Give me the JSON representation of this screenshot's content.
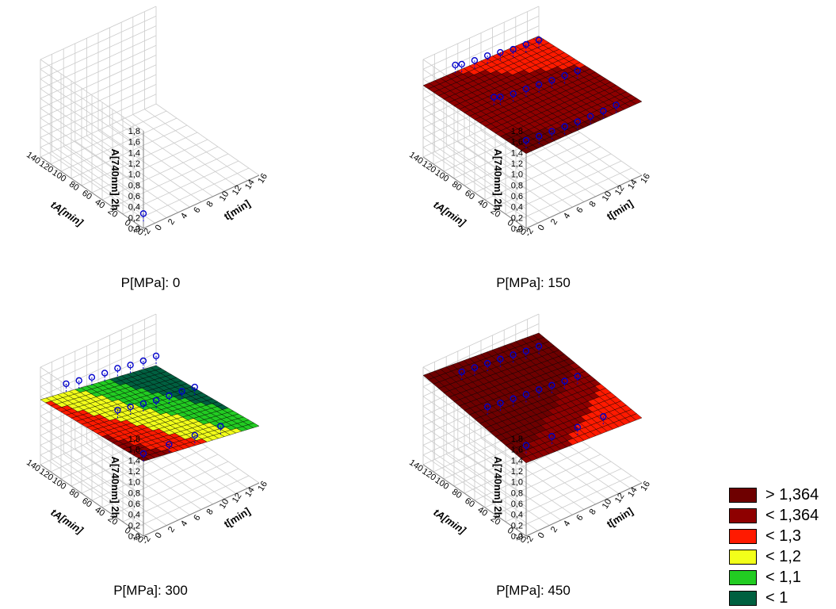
{
  "chart_data": [
    {
      "type": "surface3d",
      "caption": "P[MPa]: 0",
      "zlabel": "A[740nm] 2h",
      "xlabel": "t[min]",
      "ylabel": "tA[min]",
      "x_ticks": [
        "-2",
        "0",
        "2",
        "4",
        "6",
        "8",
        "10",
        "12",
        "14",
        "16"
      ],
      "y_ticks": [
        "-20",
        "0",
        "20",
        "40",
        "60",
        "80",
        "100",
        "120",
        "140"
      ],
      "z_ticks": [
        "0,0",
        "0,2",
        "0,4",
        "0,6",
        "0,8",
        "1,0",
        "1,2",
        "1,4",
        "1,6",
        "1,8"
      ],
      "xlim": [
        -2,
        16
      ],
      "ylim": [
        -20,
        140
      ],
      "zlim": [
        0,
        1.8
      ],
      "surface": null,
      "points": [
        {
          "x": 0,
          "y": 0,
          "z": 0
        }
      ]
    },
    {
      "type": "surface3d",
      "caption": "P[MPa]: 150",
      "zlabel": "A[740nm] 2h",
      "xlabel": "t[min]",
      "ylabel": "tA[min]",
      "x_ticks": [
        "-2",
        "0",
        "2",
        "4",
        "6",
        "8",
        "10",
        "12",
        "14",
        "16"
      ],
      "y_ticks": [
        "-20",
        "0",
        "20",
        "40",
        "60",
        "80",
        "100",
        "120",
        "140"
      ],
      "z_ticks": [
        "0,0",
        "0,2",
        "0,4",
        "0,6",
        "0,8",
        "1,0",
        "1,2",
        "1,4",
        "1,6",
        "1,8"
      ],
      "xlim": [
        -2,
        16
      ],
      "ylim": [
        -20,
        140
      ],
      "zlim": [
        0,
        1.8
      ],
      "surface": {
        "z_corner_x0y0": 1.38,
        "z_corner_x1y0": 1.36,
        "z_corner_x0y1": 1.32,
        "z_corner_x1y1": 1.25
      },
      "points": [
        {
          "x": 1,
          "y": 120,
          "z": 1.7
        },
        {
          "x": 2,
          "y": 120,
          "z": 1.66
        },
        {
          "x": 4,
          "y": 120,
          "z": 1.62
        },
        {
          "x": 6,
          "y": 120,
          "z": 1.6
        },
        {
          "x": 8,
          "y": 120,
          "z": 1.55
        },
        {
          "x": 10,
          "y": 120,
          "z": 1.5
        },
        {
          "x": 12,
          "y": 120,
          "z": 1.48
        },
        {
          "x": 14,
          "y": 120,
          "z": 1.45
        },
        {
          "x": 1,
          "y": 60,
          "z": 1.6
        },
        {
          "x": 2,
          "y": 60,
          "z": 1.55
        },
        {
          "x": 4,
          "y": 60,
          "z": 1.5
        },
        {
          "x": 6,
          "y": 60,
          "z": 1.48
        },
        {
          "x": 8,
          "y": 60,
          "z": 1.45
        },
        {
          "x": 10,
          "y": 60,
          "z": 1.42
        },
        {
          "x": 12,
          "y": 60,
          "z": 1.4
        },
        {
          "x": 14,
          "y": 60,
          "z": 1.38
        },
        {
          "x": 0,
          "y": 0,
          "z": 1.35
        },
        {
          "x": 2,
          "y": 0,
          "z": 1.32
        },
        {
          "x": 4,
          "y": 0,
          "z": 1.3
        },
        {
          "x": 6,
          "y": 0,
          "z": 1.28
        },
        {
          "x": 8,
          "y": 0,
          "z": 1.26
        },
        {
          "x": 10,
          "y": 0,
          "z": 1.25
        },
        {
          "x": 12,
          "y": 0,
          "z": 1.24
        },
        {
          "x": 14,
          "y": 0,
          "z": 1.24
        }
      ]
    },
    {
      "type": "surface3d",
      "caption": "P[MPa]: 300",
      "zlabel": "A[740nm] 2h",
      "xlabel": "t[min]",
      "ylabel": "tA[min]",
      "x_ticks": [
        "-2",
        "0",
        "2",
        "4",
        "6",
        "8",
        "10",
        "12",
        "14",
        "16"
      ],
      "y_ticks": [
        "-20",
        "0",
        "20",
        "40",
        "60",
        "80",
        "100",
        "120",
        "140"
      ],
      "z_ticks": [
        "0,0",
        "0,2",
        "0,4",
        "0,6",
        "0,8",
        "1,0",
        "1,2",
        "1,4",
        "1,6",
        "1,8"
      ],
      "xlim": [
        -2,
        16
      ],
      "ylim": [
        -20,
        140
      ],
      "zlim": [
        0,
        1.8
      ],
      "surface": {
        "z_corner_x0y0": 1.38,
        "z_corner_x1y0": 1.05,
        "z_corner_x0y1": 1.2,
        "z_corner_x1y1": 0.85
      },
      "points": [
        {
          "x": 0,
          "y": 120,
          "z": 1.55
        },
        {
          "x": 2,
          "y": 120,
          "z": 1.5
        },
        {
          "x": 4,
          "y": 120,
          "z": 1.45
        },
        {
          "x": 6,
          "y": 120,
          "z": 1.42
        },
        {
          "x": 8,
          "y": 120,
          "z": 1.4
        },
        {
          "x": 10,
          "y": 120,
          "z": 1.35
        },
        {
          "x": 12,
          "y": 120,
          "z": 1.32
        },
        {
          "x": 14,
          "y": 120,
          "z": 1.3
        },
        {
          "x": 2,
          "y": 60,
          "z": 1.45
        },
        {
          "x": 4,
          "y": 60,
          "z": 1.4
        },
        {
          "x": 6,
          "y": 60,
          "z": 1.35
        },
        {
          "x": 8,
          "y": 60,
          "z": 1.3
        },
        {
          "x": 10,
          "y": 60,
          "z": 1.28
        },
        {
          "x": 12,
          "y": 60,
          "z": 1.25
        },
        {
          "x": 14,
          "y": 60,
          "z": 1.22
        },
        {
          "x": 0,
          "y": 0,
          "z": 1.25
        },
        {
          "x": 4,
          "y": 0,
          "z": 1.2
        },
        {
          "x": 8,
          "y": 0,
          "z": 1.15
        },
        {
          "x": 12,
          "y": 0,
          "z": 1.1
        }
      ]
    },
    {
      "type": "surface3d",
      "caption": "P[MPa]: 450",
      "zlabel": "A[740nm] 2h",
      "xlabel": "t[min]",
      "ylabel": "tA[min]",
      "x_ticks": [
        "-2",
        "0",
        "2",
        "4",
        "6",
        "8",
        "10",
        "12",
        "14",
        "16"
      ],
      "y_ticks": [
        "-20",
        "0",
        "20",
        "40",
        "60",
        "80",
        "100",
        "120",
        "140"
      ],
      "z_ticks": [
        "0,0",
        "0,2",
        "0,4",
        "0,6",
        "0,8",
        "1,0",
        "1,2",
        "1,4",
        "1,6",
        "1,8"
      ],
      "xlim": [
        -2,
        16
      ],
      "ylim": [
        -20,
        140
      ],
      "zlim": [
        0,
        1.8
      ],
      "surface": {
        "z_corner_x0y0": 1.35,
        "z_corner_x1y0": 1.2,
        "z_corner_x0y1": 1.65,
        "z_corner_x1y1": 1.45
      },
      "points": [
        {
          "x": 2,
          "y": 120,
          "z": 1.66
        },
        {
          "x": 4,
          "y": 120,
          "z": 1.63
        },
        {
          "x": 6,
          "y": 120,
          "z": 1.6
        },
        {
          "x": 8,
          "y": 120,
          "z": 1.57
        },
        {
          "x": 10,
          "y": 120,
          "z": 1.54
        },
        {
          "x": 12,
          "y": 120,
          "z": 1.5
        },
        {
          "x": 14,
          "y": 120,
          "z": 1.48
        },
        {
          "x": 0,
          "y": 60,
          "z": 1.62
        },
        {
          "x": 2,
          "y": 60,
          "z": 1.58
        },
        {
          "x": 4,
          "y": 60,
          "z": 1.55
        },
        {
          "x": 6,
          "y": 60,
          "z": 1.52
        },
        {
          "x": 8,
          "y": 60,
          "z": 1.5
        },
        {
          "x": 10,
          "y": 60,
          "z": 1.47
        },
        {
          "x": 12,
          "y": 60,
          "z": 1.44
        },
        {
          "x": 14,
          "y": 60,
          "z": 1.42
        },
        {
          "x": 0,
          "y": 0,
          "z": 1.4
        },
        {
          "x": 4,
          "y": 0,
          "z": 1.35
        },
        {
          "x": 8,
          "y": 0,
          "z": 1.3
        },
        {
          "x": 12,
          "y": 0,
          "z": 1.28
        }
      ]
    }
  ],
  "legend": [
    {
      "label": "> 1,364",
      "color": "#6e0000"
    },
    {
      "label": "< 1,364",
      "color": "#8e0000"
    },
    {
      "label": "< 1,3",
      "color": "#ff1a00"
    },
    {
      "label": "< 1,2",
      "color": "#f2ff1a"
    },
    {
      "label": "< 1,1",
      "color": "#22cc22"
    },
    {
      "label": "< 1",
      "color": "#006040"
    }
  ],
  "colors": {
    "point": "#0000cc",
    "grid": "#cccccc",
    "wire": "#000000"
  }
}
